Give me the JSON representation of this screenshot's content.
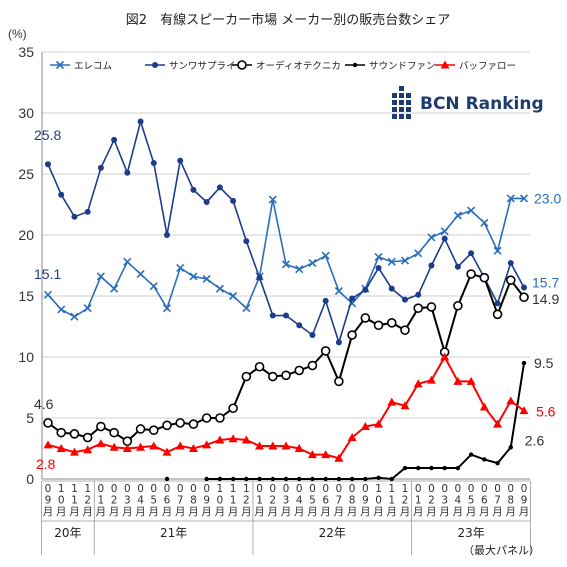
{
  "chart_data": {
    "type": "line",
    "title": "図2　有線スピーカー市場 メーカー別の販売台数シェア",
    "ylabel": "(%)",
    "ylim": [
      0,
      35
    ],
    "yticks": [
      0,
      5,
      10,
      15,
      20,
      25,
      30,
      35
    ],
    "grid": true,
    "legend_position": "top",
    "x": [
      "20/09",
      "20/10",
      "20/11",
      "20/12",
      "21/01",
      "21/02",
      "21/03",
      "21/04",
      "21/05",
      "21/06",
      "21/07",
      "21/08",
      "21/09",
      "21/10",
      "21/11",
      "21/12",
      "22/01",
      "22/02",
      "22/03",
      "22/04",
      "22/05",
      "22/06",
      "22/07",
      "22/08",
      "22/09",
      "22/10",
      "22/11",
      "22/12",
      "23/01",
      "23/02",
      "23/03",
      "23/04",
      "23/05",
      "23/06",
      "23/07",
      "23/08",
      "23/09"
    ],
    "xtick_labels": [
      "09月",
      "10月",
      "11月",
      "12月",
      "01月",
      "02月",
      "03月",
      "04月",
      "05月",
      "06月",
      "07月",
      "08月",
      "09月",
      "10月",
      "11月",
      "12月",
      "01月",
      "02月",
      "03月",
      "04月",
      "05月",
      "06月",
      "07月",
      "08月",
      "09月",
      "10月",
      "11月",
      "12月",
      "01月",
      "02月",
      "03月",
      "04月",
      "05月",
      "06月",
      "07月",
      "08月",
      "09月"
    ],
    "year_groups": [
      {
        "label": "20年",
        "start": 0,
        "end": 3
      },
      {
        "label": "21年",
        "start": 4,
        "end": 15
      },
      {
        "label": "22年",
        "start": 16,
        "end": 27
      },
      {
        "label": "23年",
        "start": 28,
        "end": 36
      }
    ],
    "series": [
      {
        "name": "エレコム",
        "color": "#2a6ebb",
        "marker": "x",
        "values": [
          15.1,
          13.9,
          13.3,
          14.0,
          16.6,
          15.6,
          17.8,
          16.8,
          15.8,
          14.0,
          17.3,
          16.6,
          16.4,
          15.6,
          15.0,
          14.0,
          16.6,
          22.9,
          17.6,
          17.2,
          17.7,
          18.3,
          15.4,
          14.4,
          15.6,
          18.2,
          17.8,
          17.9,
          18.5,
          19.8,
          20.3,
          21.6,
          22.0,
          21.0,
          18.7,
          23.0,
          23.0
        ]
      },
      {
        "name": "サンワサプライ",
        "color": "#1f3c8c",
        "marker": "dot",
        "values": [
          25.8,
          23.3,
          21.5,
          21.9,
          25.5,
          27.8,
          25.1,
          29.3,
          25.9,
          20.0,
          26.1,
          23.7,
          22.7,
          23.9,
          22.8,
          19.5,
          16.5,
          13.4,
          13.4,
          12.6,
          11.8,
          14.6,
          11.2,
          14.8,
          15.5,
          17.3,
          15.6,
          14.7,
          15.1,
          17.5,
          19.7,
          17.4,
          18.5,
          16.5,
          14.4,
          17.7,
          15.7
        ]
      },
      {
        "name": "オーディオテクニカ",
        "color": "#000000",
        "marker": "circle",
        "values": [
          4.6,
          3.8,
          3.7,
          3.4,
          4.3,
          3.8,
          3.1,
          4.1,
          4.0,
          4.4,
          4.6,
          4.5,
          5.0,
          5.0,
          5.8,
          8.4,
          9.2,
          8.4,
          8.5,
          8.9,
          9.3,
          10.5,
          8.0,
          11.8,
          13.2,
          12.6,
          12.8,
          12.2,
          14.0,
          14.1,
          10.4,
          14.2,
          16.8,
          16.5,
          13.5,
          16.3,
          14.9
        ]
      },
      {
        "name": "サウンドファン",
        "color": "#000000",
        "marker": "smalldot",
        "values": [
          null,
          null,
          null,
          null,
          null,
          null,
          null,
          null,
          null,
          0.0,
          null,
          null,
          0.0,
          0.0,
          0.0,
          0.0,
          0.0,
          0.0,
          0.0,
          0.0,
          0.0,
          0.0,
          0.0,
          0.0,
          0.0,
          0.1,
          0.0,
          0.9,
          0.9,
          0.9,
          0.9,
          0.9,
          2.0,
          1.6,
          1.3,
          2.6,
          9.5
        ]
      },
      {
        "name": "バッファロー",
        "color": "#ff0000",
        "marker": "triangle",
        "values": [
          2.8,
          2.5,
          2.2,
          2.4,
          2.9,
          2.6,
          2.5,
          2.6,
          2.7,
          2.2,
          2.7,
          2.5,
          2.8,
          3.2,
          3.3,
          3.2,
          2.7,
          2.7,
          2.7,
          2.5,
          2.0,
          2.0,
          1.7,
          3.4,
          4.3,
          4.5,
          6.3,
          6.0,
          7.8,
          8.1,
          10.0,
          8.0,
          8.0,
          5.9,
          4.5,
          6.4,
          5.6
        ]
      }
    ],
    "annotations": [
      {
        "text": "25.8",
        "series": 1,
        "index": 0,
        "color": "#1f3c8c"
      },
      {
        "text": "15.1",
        "series": 0,
        "index": 0,
        "color": "#1f3c8c"
      },
      {
        "text": "4.6",
        "series": 2,
        "index": 0,
        "color": "#333333"
      },
      {
        "text": "2.8",
        "series": 4,
        "index": 0,
        "color": "#ff0000"
      },
      {
        "text": "23.0",
        "series": 0,
        "index": 36,
        "color": "#2a6ebb"
      },
      {
        "text": "15.7",
        "series": 1,
        "index": 36,
        "color": "#2a6ebb"
      },
      {
        "text": "14.9",
        "series": 2,
        "index": 36,
        "color": "#333333"
      },
      {
        "text": "9.5",
        "series": 3,
        "index": 36,
        "color": "#333333"
      },
      {
        "text": "5.6",
        "series": 4,
        "index": 36,
        "color": "#ff0000"
      },
      {
        "text": "2.6",
        "series": 3,
        "index": 35,
        "color": "#333333"
      }
    ],
    "note": "（最大パネル）",
    "logo_text": "BCN Ranking"
  }
}
